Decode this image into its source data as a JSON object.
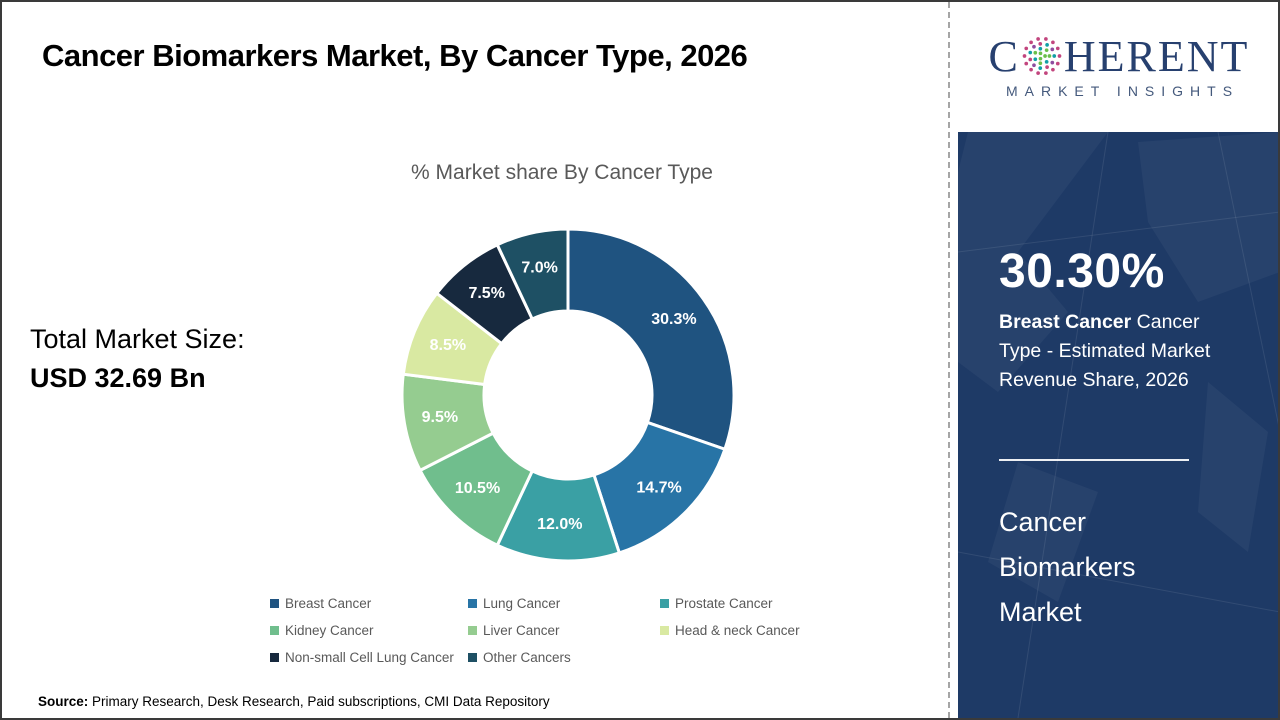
{
  "header": {
    "title": "Cancer Biomarkers Market, By Cancer Type, 2026"
  },
  "logo": {
    "word_start": "C",
    "word_end": "HERENT",
    "subtitle": "MARKET INSIGHTS",
    "colors": {
      "navy": "#27406F",
      "pink": "#C2457E",
      "teal": "#129FA6",
      "green": "#6ABF4A",
      "purple": "#8E4D9F"
    }
  },
  "left_panel": {
    "total_label": "Total Market Size:",
    "total_value": "USD 32.69 Bn"
  },
  "chart_data": {
    "type": "pie",
    "subtype": "donut",
    "title": "% Market share By Cancer Type",
    "categories": [
      "Breast Cancer",
      "Lung Cancer",
      "Prostate Cancer",
      "Kidney Cancer",
      "Liver Cancer",
      "Head & neck Cancer",
      "Non-small Cell Lung Cancer",
      "Other Cancers"
    ],
    "values": [
      30.3,
      14.7,
      12.0,
      10.5,
      9.5,
      8.5,
      7.5,
      7.0
    ],
    "labels": [
      "30.3%",
      "14.7%",
      "12.0%",
      "10.5%",
      "9.5%",
      "8.5%",
      "7.5%",
      "7.0%"
    ],
    "colors": [
      "#1F5380",
      "#2874A6",
      "#3AA0A4",
      "#70BE8D",
      "#95CC90",
      "#D9E9A2",
      "#17293E",
      "#1E5064"
    ],
    "start_angle_deg": 0,
    "direction": "clockwise",
    "outer_radius_px": 166,
    "inner_radius_px": 84,
    "label_color": "#ffffff",
    "separator_color": "#ffffff",
    "legend_position": "bottom"
  },
  "sidebar": {
    "background": "#1E3A66",
    "highlight_value": "30.30%",
    "highlight_bold": "Breast Cancer",
    "highlight_rest": " Cancer Type - Estimated Market Revenue Share, 2026",
    "market_name_lines": [
      "Cancer",
      "Biomarkers",
      "Market"
    ]
  },
  "footer": {
    "source_label": "Source:",
    "source_text": " Primary Research, Desk Research, Paid subscriptions, CMI Data Repository"
  }
}
